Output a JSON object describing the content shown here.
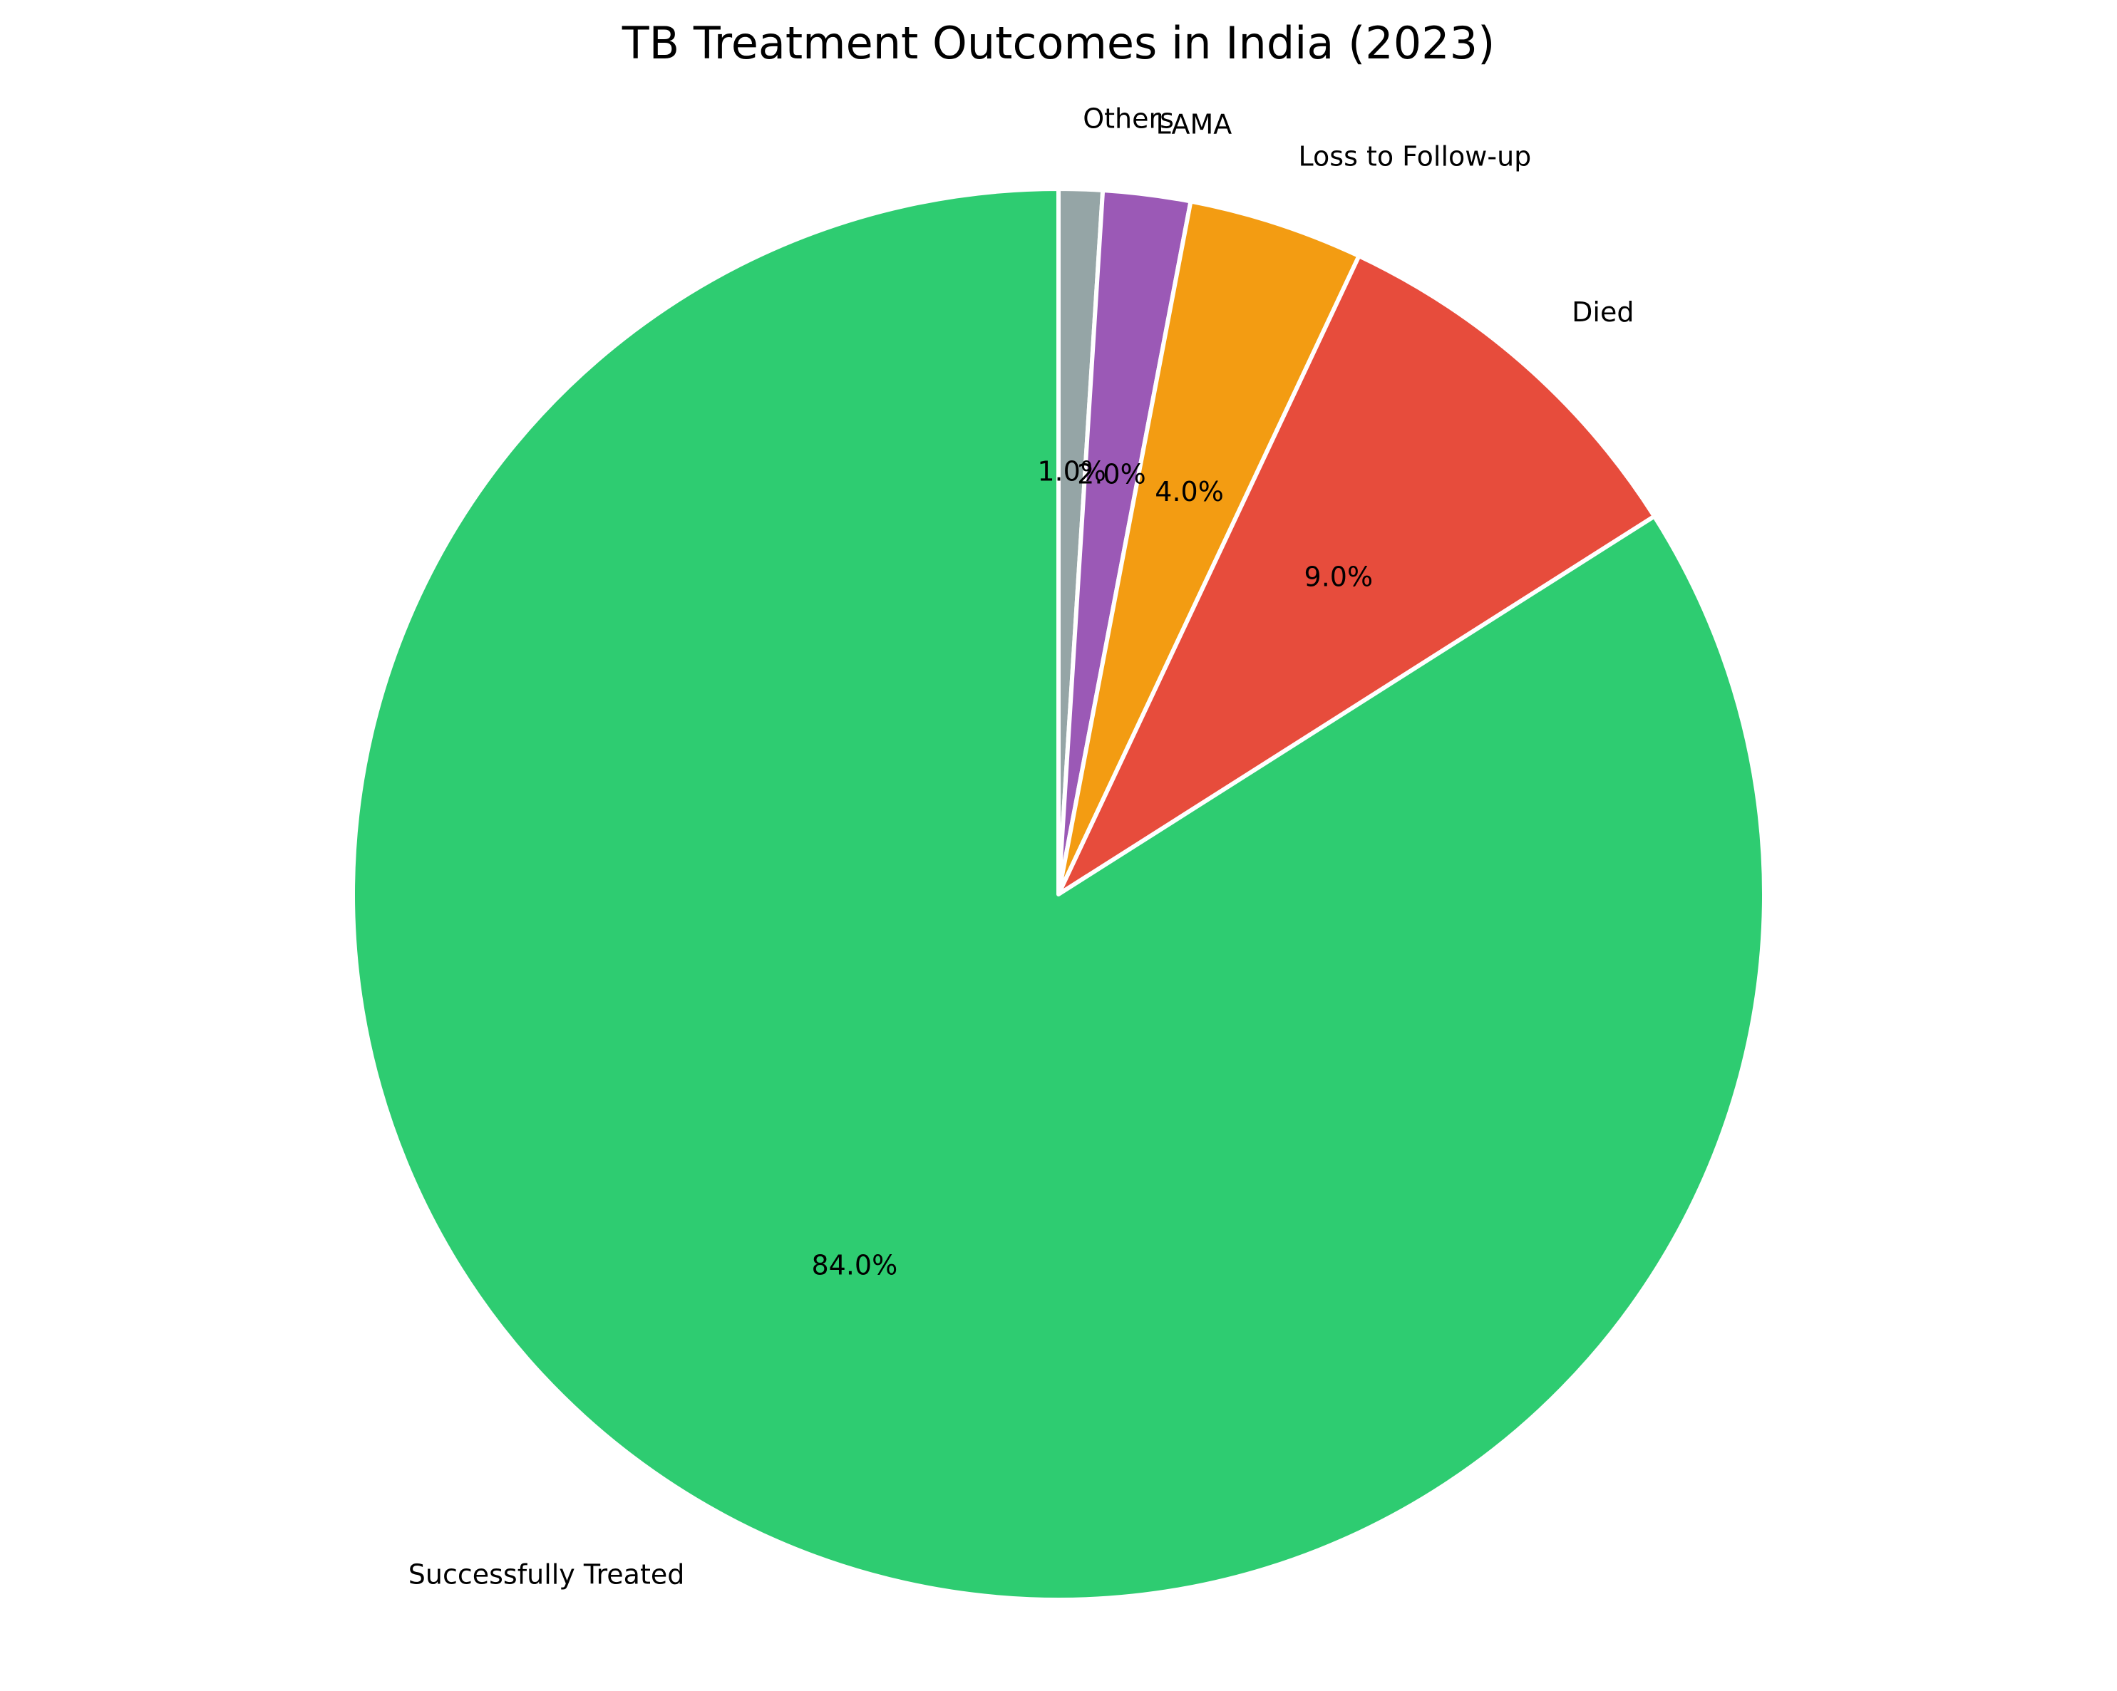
{
  "chart_data": {
    "type": "pie",
    "title": "TB Treatment Outcomes in India (2023)",
    "start_angle_deg": 90,
    "direction": "clockwise",
    "slices": [
      {
        "label": "Others",
        "value": 1.0,
        "pct_label": "1.0%",
        "color": "#95a5a6"
      },
      {
        "label": "LAMA",
        "value": 2.0,
        "pct_label": "2.0%",
        "color": "#9b59b6"
      },
      {
        "label": "Loss to Follow-up",
        "value": 4.0,
        "pct_label": "4.0%",
        "color": "#f39c12"
      },
      {
        "label": "Died",
        "value": 9.0,
        "pct_label": "9.0%",
        "color": "#e74c3c"
      },
      {
        "label": "Successfully Treated",
        "value": 84.0,
        "pct_label": "84.0%",
        "color": "#2ecc71"
      }
    ],
    "edge_color": "#ffffff"
  }
}
